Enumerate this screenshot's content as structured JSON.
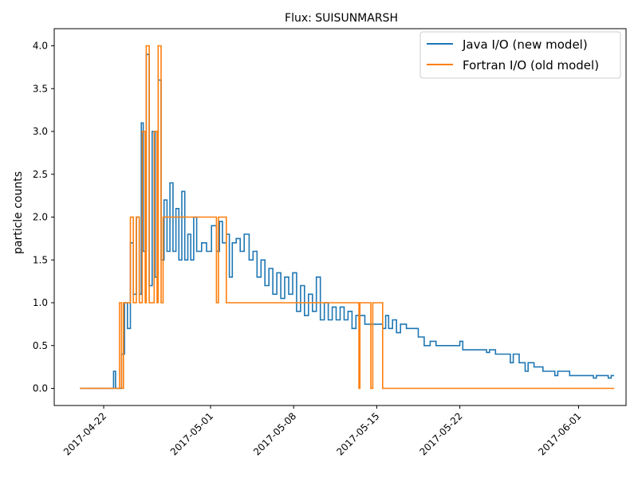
{
  "chart_data": {
    "type": "line",
    "title": "Flux: SUISUNMARSH",
    "xlabel": "",
    "ylabel": "particle counts",
    "xlim": [
      "2017-04-17T20:00",
      "2017-06-05T00:00"
    ],
    "ylim": [
      -0.2,
      4.2
    ],
    "x_ticks": [
      "2017-04-22",
      "2017-05-01",
      "2017-05-08",
      "2017-05-15",
      "2017-05-22",
      "2017-06-01"
    ],
    "y_ticks": [
      "0.0",
      "0.5",
      "1.0",
      "1.5",
      "2.0",
      "2.5",
      "3.0",
      "3.5",
      "4.0"
    ],
    "y_tick_values": [
      0,
      0.5,
      1.0,
      1.5,
      2.0,
      2.5,
      3.0,
      3.5,
      4.0
    ],
    "legend": {
      "placement": "upper right"
    },
    "series": [
      {
        "name": "Java I/O (new model)",
        "color": "#1f77b4",
        "style": "steps",
        "points": [
          [
            "2017-04-20T00:00",
            0
          ],
          [
            "2017-04-22T18:00",
            0
          ],
          [
            "2017-04-22T20:00",
            0.2
          ],
          [
            "2017-04-23T00:00",
            0
          ],
          [
            "2017-04-23T12:00",
            0.4
          ],
          [
            "2017-04-23T18:00",
            1.0
          ],
          [
            "2017-04-24T00:00",
            0.7
          ],
          [
            "2017-04-24T06:00",
            1.7
          ],
          [
            "2017-04-24T12:00",
            1.1
          ],
          [
            "2017-04-24T18:00",
            2.0
          ],
          [
            "2017-04-25T00:00",
            1.1
          ],
          [
            "2017-04-25T04:00",
            3.1
          ],
          [
            "2017-04-25T08:00",
            1.6
          ],
          [
            "2017-04-25T14:00",
            3.9
          ],
          [
            "2017-04-25T20:00",
            1.2
          ],
          [
            "2017-04-26T02:00",
            3.0
          ],
          [
            "2017-04-26T08:00",
            1.3
          ],
          [
            "2017-04-26T14:00",
            3.6
          ],
          [
            "2017-04-26T20:00",
            1.5
          ],
          [
            "2017-04-27T02:00",
            2.2
          ],
          [
            "2017-04-27T08:00",
            1.6
          ],
          [
            "2017-04-27T14:00",
            2.4
          ],
          [
            "2017-04-27T20:00",
            1.6
          ],
          [
            "2017-04-28T02:00",
            2.1
          ],
          [
            "2017-04-28T08:00",
            1.5
          ],
          [
            "2017-04-28T14:00",
            2.3
          ],
          [
            "2017-04-28T20:00",
            1.5
          ],
          [
            "2017-04-29T02:00",
            1.8
          ],
          [
            "2017-04-29T08:00",
            1.5
          ],
          [
            "2017-04-29T14:00",
            2.0
          ],
          [
            "2017-04-29T20:00",
            1.6
          ],
          [
            "2017-04-30T06:00",
            1.7
          ],
          [
            "2017-04-30T16:00",
            1.6
          ],
          [
            "2017-05-01T02:00",
            1.9
          ],
          [
            "2017-05-01T12:00",
            1.6
          ],
          [
            "2017-05-01T18:00",
            1.95
          ],
          [
            "2017-05-02T00:00",
            1.7
          ],
          [
            "2017-05-02T08:00",
            1.8
          ],
          [
            "2017-05-02T14:00",
            1.3
          ],
          [
            "2017-05-02T20:00",
            1.7
          ],
          [
            "2017-05-03T04:00",
            1.75
          ],
          [
            "2017-05-03T12:00",
            1.6
          ],
          [
            "2017-05-03T20:00",
            1.8
          ],
          [
            "2017-05-04T06:00",
            1.5
          ],
          [
            "2017-05-04T14:00",
            1.6
          ],
          [
            "2017-05-04T22:00",
            1.3
          ],
          [
            "2017-05-05T06:00",
            1.5
          ],
          [
            "2017-05-05T14:00",
            1.2
          ],
          [
            "2017-05-05T22:00",
            1.4
          ],
          [
            "2017-05-06T06:00",
            1.1
          ],
          [
            "2017-05-06T14:00",
            1.35
          ],
          [
            "2017-05-06T22:00",
            1.05
          ],
          [
            "2017-05-07T06:00",
            1.3
          ],
          [
            "2017-05-07T14:00",
            1.1
          ],
          [
            "2017-05-07T22:00",
            1.35
          ],
          [
            "2017-05-08T06:00",
            0.9
          ],
          [
            "2017-05-08T14:00",
            1.2
          ],
          [
            "2017-05-08T22:00",
            0.85
          ],
          [
            "2017-05-09T06:00",
            1.1
          ],
          [
            "2017-05-09T14:00",
            0.9
          ],
          [
            "2017-05-09T22:00",
            1.3
          ],
          [
            "2017-05-10T06:00",
            0.8
          ],
          [
            "2017-05-10T14:00",
            1.0
          ],
          [
            "2017-05-10T22:00",
            0.8
          ],
          [
            "2017-05-11T06:00",
            0.95
          ],
          [
            "2017-05-11T14:00",
            0.8
          ],
          [
            "2017-05-11T22:00",
            0.95
          ],
          [
            "2017-05-12T06:00",
            0.8
          ],
          [
            "2017-05-12T14:00",
            0.9
          ],
          [
            "2017-05-12T22:00",
            0.7
          ],
          [
            "2017-05-13T06:00",
            0.85
          ],
          [
            "2017-05-14T00:00",
            0.75
          ],
          [
            "2017-05-15T12:00",
            0.7
          ],
          [
            "2017-05-15T18:00",
            0.85
          ],
          [
            "2017-05-16T00:00",
            0.7
          ],
          [
            "2017-05-16T08:00",
            0.8
          ],
          [
            "2017-05-16T16:00",
            0.65
          ],
          [
            "2017-05-17T00:00",
            0.75
          ],
          [
            "2017-05-17T12:00",
            0.7
          ],
          [
            "2017-05-18T12:00",
            0.6
          ],
          [
            "2017-05-19T00:00",
            0.5
          ],
          [
            "2017-05-19T12:00",
            0.55
          ],
          [
            "2017-05-20T00:00",
            0.5
          ],
          [
            "2017-05-22T00:00",
            0.55
          ],
          [
            "2017-05-22T06:00",
            0.45
          ],
          [
            "2017-05-24T06:00",
            0.42
          ],
          [
            "2017-05-24T12:00",
            0.45
          ],
          [
            "2017-05-25T00:00",
            0.4
          ],
          [
            "2017-05-26T06:00",
            0.3
          ],
          [
            "2017-05-26T12:00",
            0.4
          ],
          [
            "2017-05-27T00:00",
            0.3
          ],
          [
            "2017-05-27T12:00",
            0.2
          ],
          [
            "2017-05-27T18:00",
            0.3
          ],
          [
            "2017-05-28T06:00",
            0.25
          ],
          [
            "2017-05-29T00:00",
            0.2
          ],
          [
            "2017-05-30T00:00",
            0.15
          ],
          [
            "2017-05-30T06:00",
            0.2
          ],
          [
            "2017-05-31T06:00",
            0.15
          ],
          [
            "2017-06-01T12:00",
            0.15
          ],
          [
            "2017-06-02T06:00",
            0.12
          ],
          [
            "2017-06-02T12:00",
            0.15
          ],
          [
            "2017-06-03T12:00",
            0.12
          ],
          [
            "2017-06-03T18:00",
            0.15
          ],
          [
            "2017-06-04T00:00",
            0.15
          ]
        ]
      },
      {
        "name": "Fortran I/O (old model)",
        "color": "#ff7f0e",
        "style": "steps",
        "points": [
          [
            "2017-04-20T00:00",
            0
          ],
          [
            "2017-04-23T06:00",
            0
          ],
          [
            "2017-04-23T08:00",
            1.0
          ],
          [
            "2017-04-23T12:00",
            0
          ],
          [
            "2017-04-23T16:00",
            1.0
          ],
          [
            "2017-04-24T06:00",
            2.0
          ],
          [
            "2017-04-24T12:00",
            1.0
          ],
          [
            "2017-04-24T18:00",
            2.0
          ],
          [
            "2017-04-25T00:00",
            1.0
          ],
          [
            "2017-04-25T06:00",
            3.0
          ],
          [
            "2017-04-25T12:00",
            1.0
          ],
          [
            "2017-04-25T14:00",
            4.0
          ],
          [
            "2017-04-25T20:00",
            1.0
          ],
          [
            "2017-04-26T06:00",
            3.0
          ],
          [
            "2017-04-26T12:00",
            1.0
          ],
          [
            "2017-04-26T14:00",
            4.0
          ],
          [
            "2017-04-26T20:00",
            1.0
          ],
          [
            "2017-04-27T00:00",
            2.0
          ],
          [
            "2017-05-01T12:00",
            1.0
          ],
          [
            "2017-05-01T16:00",
            2.0
          ],
          [
            "2017-05-02T08:00",
            1.0
          ],
          [
            "2017-05-13T12:00",
            0
          ],
          [
            "2017-05-13T14:00",
            1.0
          ],
          [
            "2017-05-14T12:00",
            0
          ],
          [
            "2017-05-14T16:00",
            1.0
          ],
          [
            "2017-05-15T12:00",
            0
          ],
          [
            "2017-06-04T00:00",
            0
          ]
        ]
      }
    ]
  }
}
